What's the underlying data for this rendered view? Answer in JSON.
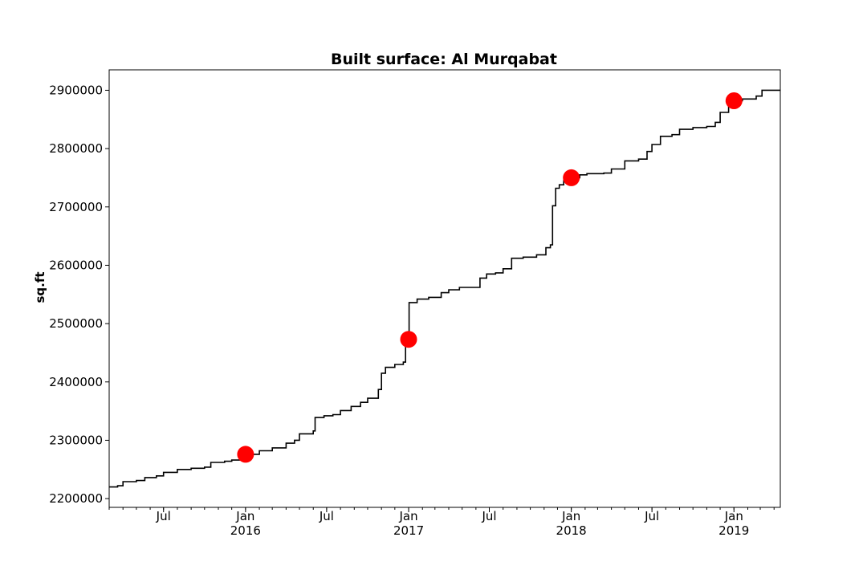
{
  "chart_data": {
    "type": "line",
    "title": "Built surface: Al Murqabat",
    "xlabel": "",
    "ylabel": "sq.ft",
    "xlim": [
      "2015-03-01",
      "2019-04-15"
    ],
    "ylim": [
      2185000,
      2935000
    ],
    "grid": false,
    "legend": "none",
    "x_ticks": [
      {
        "date": "2015-07-01",
        "label": "Jul",
        "sublabel": ""
      },
      {
        "date": "2016-01-01",
        "label": "Jan",
        "sublabel": "2016"
      },
      {
        "date": "2016-07-01",
        "label": "Jul",
        "sublabel": ""
      },
      {
        "date": "2017-01-01",
        "label": "Jan",
        "sublabel": "2017"
      },
      {
        "date": "2017-07-01",
        "label": "Jul",
        "sublabel": ""
      },
      {
        "date": "2018-01-01",
        "label": "Jan",
        "sublabel": "2018"
      },
      {
        "date": "2018-07-01",
        "label": "Jul",
        "sublabel": ""
      },
      {
        "date": "2019-01-01",
        "label": "Jan",
        "sublabel": "2019"
      }
    ],
    "y_ticks": [
      2200000,
      2300000,
      2400000,
      2500000,
      2600000,
      2700000,
      2800000,
      2900000
    ],
    "series": [
      {
        "color": "#000000",
        "style": "step",
        "points": [
          [
            "2015-03-01",
            2220000
          ],
          [
            "2015-03-20",
            2222000
          ],
          [
            "2015-04-01",
            2229000
          ],
          [
            "2015-05-01",
            2231000
          ],
          [
            "2015-05-20",
            2236000
          ],
          [
            "2015-06-15",
            2239000
          ],
          [
            "2015-07-01",
            2245000
          ],
          [
            "2015-08-01",
            2250000
          ],
          [
            "2015-09-01",
            2252000
          ],
          [
            "2015-10-01",
            2254000
          ],
          [
            "2015-10-15",
            2262000
          ],
          [
            "2015-11-15",
            2264000
          ],
          [
            "2015-12-01",
            2266000
          ],
          [
            "2016-01-01",
            2276000
          ],
          [
            "2016-02-01",
            2282000
          ],
          [
            "2016-03-01",
            2287000
          ],
          [
            "2016-04-01",
            2295000
          ],
          [
            "2016-04-20",
            2300000
          ],
          [
            "2016-05-01",
            2311000
          ],
          [
            "2016-06-01",
            2316000
          ],
          [
            "2016-06-05",
            2339000
          ],
          [
            "2016-06-25",
            2342000
          ],
          [
            "2016-07-15",
            2344000
          ],
          [
            "2016-08-01",
            2351000
          ],
          [
            "2016-08-25",
            2358000
          ],
          [
            "2016-09-15",
            2365000
          ],
          [
            "2016-10-01",
            2372000
          ],
          [
            "2016-10-25",
            2387000
          ],
          [
            "2016-11-01",
            2415000
          ],
          [
            "2016-11-10",
            2425000
          ],
          [
            "2016-12-01",
            2430000
          ],
          [
            "2016-12-20",
            2434000
          ],
          [
            "2016-12-25",
            2468000
          ],
          [
            "2017-01-01",
            2473000
          ],
          [
            "2017-01-02",
            2536000
          ],
          [
            "2017-01-20",
            2542000
          ],
          [
            "2017-02-15",
            2545000
          ],
          [
            "2017-03-15",
            2553000
          ],
          [
            "2017-04-01",
            2558000
          ],
          [
            "2017-04-25",
            2562000
          ],
          [
            "2017-06-10",
            2578000
          ],
          [
            "2017-06-25",
            2585000
          ],
          [
            "2017-07-15",
            2587000
          ],
          [
            "2017-08-01",
            2594000
          ],
          [
            "2017-08-20",
            2612000
          ],
          [
            "2017-09-15",
            2614000
          ],
          [
            "2017-10-15",
            2618000
          ],
          [
            "2017-11-05",
            2630000
          ],
          [
            "2017-11-15",
            2635000
          ],
          [
            "2017-11-20",
            2702000
          ],
          [
            "2017-11-27",
            2732000
          ],
          [
            "2017-12-05",
            2738000
          ],
          [
            "2017-12-15",
            2745000
          ],
          [
            "2018-01-01",
            2750000
          ],
          [
            "2018-01-20",
            2755000
          ],
          [
            "2018-02-05",
            2757000
          ],
          [
            "2018-03-15",
            2758000
          ],
          [
            "2018-04-01",
            2765000
          ],
          [
            "2018-05-01",
            2779000
          ],
          [
            "2018-06-01",
            2782000
          ],
          [
            "2018-06-20",
            2795000
          ],
          [
            "2018-07-01",
            2807000
          ],
          [
            "2018-07-20",
            2821000
          ],
          [
            "2018-08-15",
            2824000
          ],
          [
            "2018-09-01",
            2833000
          ],
          [
            "2018-10-01",
            2836000
          ],
          [
            "2018-11-01",
            2838000
          ],
          [
            "2018-11-20",
            2845000
          ],
          [
            "2018-12-01",
            2862000
          ],
          [
            "2018-12-20",
            2872000
          ],
          [
            "2019-01-01",
            2882000
          ],
          [
            "2019-01-20",
            2885000
          ],
          [
            "2019-02-20",
            2890000
          ],
          [
            "2019-03-05",
            2900000
          ],
          [
            "2019-04-15",
            2900000
          ]
        ]
      }
    ],
    "markers": {
      "color": "#ff0000",
      "points": [
        [
          "2016-01-01",
          2276000
        ],
        [
          "2017-01-01",
          2473000
        ],
        [
          "2018-01-01",
          2750000
        ],
        [
          "2019-01-01",
          2882000
        ]
      ]
    }
  }
}
